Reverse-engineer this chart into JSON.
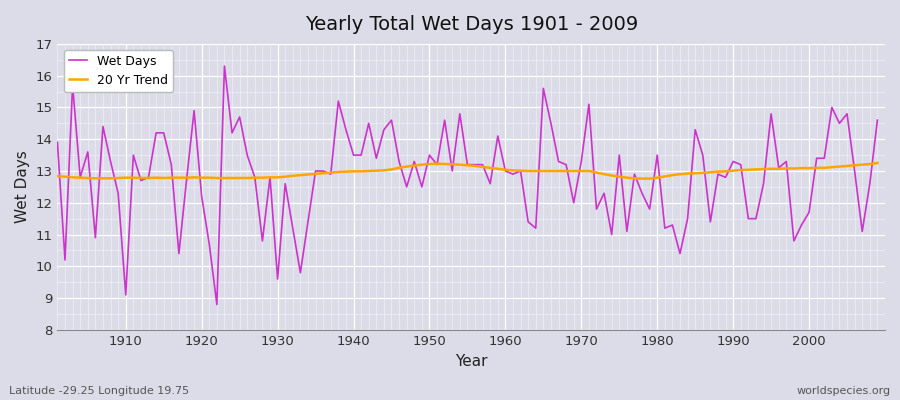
{
  "title": "Yearly Total Wet Days 1901 - 2009",
  "xlabel": "Year",
  "ylabel": "Wet Days",
  "subtitle_left": "Latitude -29.25 Longitude 19.75",
  "subtitle_right": "worldspecies.org",
  "line_color": "#CC33CC",
  "trend_color": "#FFA500",
  "bg_color": "#DCDCE8",
  "ylim": [
    8,
    17
  ],
  "yticks": [
    8,
    9,
    10,
    11,
    12,
    13,
    14,
    15,
    16,
    17
  ],
  "xlim_min": 1901,
  "xlim_max": 2010,
  "xticks": [
    1910,
    1920,
    1930,
    1940,
    1950,
    1960,
    1970,
    1980,
    1990,
    2000
  ],
  "years": [
    1901,
    1902,
    1903,
    1904,
    1905,
    1906,
    1907,
    1908,
    1909,
    1910,
    1911,
    1912,
    1913,
    1914,
    1915,
    1916,
    1917,
    1918,
    1919,
    1920,
    1921,
    1922,
    1923,
    1924,
    1925,
    1926,
    1927,
    1928,
    1929,
    1930,
    1931,
    1932,
    1933,
    1934,
    1935,
    1936,
    1937,
    1938,
    1939,
    1940,
    1941,
    1942,
    1943,
    1944,
    1945,
    1946,
    1947,
    1948,
    1949,
    1950,
    1951,
    1952,
    1953,
    1954,
    1955,
    1956,
    1957,
    1958,
    1959,
    1960,
    1961,
    1962,
    1963,
    1964,
    1965,
    1966,
    1967,
    1968,
    1969,
    1970,
    1971,
    1972,
    1973,
    1974,
    1975,
    1976,
    1977,
    1978,
    1979,
    1980,
    1981,
    1982,
    1983,
    1984,
    1985,
    1986,
    1987,
    1988,
    1989,
    1990,
    1991,
    1992,
    1993,
    1994,
    1995,
    1996,
    1997,
    1998,
    1999,
    2000,
    2001,
    2002,
    2003,
    2004,
    2005,
    2006,
    2007,
    2008,
    2009
  ],
  "wet_days": [
    13.9,
    10.2,
    15.7,
    12.8,
    13.6,
    10.9,
    14.4,
    13.3,
    12.3,
    9.1,
    13.5,
    12.7,
    12.8,
    14.2,
    14.2,
    13.2,
    10.4,
    12.7,
    14.9,
    12.2,
    10.7,
    8.8,
    16.3,
    14.2,
    14.7,
    13.5,
    12.8,
    10.8,
    12.8,
    9.6,
    12.6,
    11.2,
    9.8,
    11.4,
    13.0,
    13.0,
    12.9,
    15.2,
    14.3,
    13.5,
    13.5,
    14.5,
    13.4,
    14.3,
    14.6,
    13.3,
    12.5,
    13.3,
    12.5,
    13.5,
    13.2,
    14.6,
    13.0,
    14.8,
    13.2,
    13.2,
    13.2,
    12.6,
    14.1,
    13.0,
    12.9,
    13.0,
    11.4,
    11.2,
    15.6,
    14.5,
    13.3,
    13.2,
    12.0,
    13.3,
    15.1,
    11.8,
    12.3,
    11.0,
    13.5,
    11.1,
    12.9,
    12.3,
    11.8,
    13.5,
    11.2,
    11.3,
    10.4,
    11.5,
    14.3,
    13.5,
    11.4,
    12.9,
    12.8,
    13.3,
    13.2,
    11.5,
    11.5,
    12.6,
    14.8,
    13.1,
    13.3,
    10.8,
    11.3,
    11.7,
    13.4,
    13.4,
    15.0,
    14.5,
    14.8,
    13.0,
    11.1,
    12.6,
    14.6
  ],
  "trend": [
    12.84,
    12.82,
    12.8,
    12.79,
    12.78,
    12.77,
    12.77,
    12.77,
    12.78,
    12.79,
    12.79,
    12.78,
    12.78,
    12.79,
    12.78,
    12.79,
    12.79,
    12.79,
    12.8,
    12.79,
    12.79,
    12.78,
    12.78,
    12.78,
    12.78,
    12.78,
    12.79,
    12.79,
    12.8,
    12.8,
    12.82,
    12.85,
    12.87,
    12.89,
    12.91,
    12.93,
    12.95,
    12.97,
    12.98,
    12.99,
    12.99,
    13.0,
    13.01,
    13.02,
    13.05,
    13.1,
    13.14,
    13.17,
    13.2,
    13.22,
    13.23,
    13.22,
    13.21,
    13.2,
    13.18,
    13.16,
    13.13,
    13.1,
    13.07,
    13.04,
    13.02,
    13.01,
    13.0,
    13.0,
    13.0,
    13.0,
    13.0,
    13.0,
    13.0,
    13.0,
    13.0,
    12.95,
    12.9,
    12.86,
    12.82,
    12.79,
    12.77,
    12.76,
    12.76,
    12.79,
    12.83,
    12.87,
    12.9,
    12.92,
    12.93,
    12.94,
    12.96,
    12.98,
    12.99,
    13.01,
    13.03,
    13.04,
    13.05,
    13.06,
    13.07,
    13.07,
    13.08,
    13.08,
    13.09,
    13.09,
    13.1,
    13.1,
    13.12,
    13.14,
    13.16,
    13.18,
    13.2,
    13.22,
    13.25
  ]
}
